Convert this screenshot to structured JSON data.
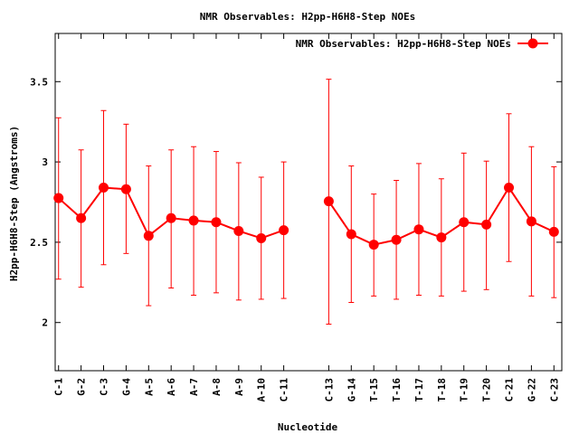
{
  "chart_data": {
    "type": "line",
    "title": "NMR Observables: H2pp-H6H8-Step NOEs",
    "xlabel": "Nucleotide",
    "ylabel": "H2pp-H6H8-Step (Angstroms)",
    "ylim": [
      1.7,
      3.8
    ],
    "yticks": [
      "2",
      "2.5",
      "3",
      "3.5"
    ],
    "grid": false,
    "legend_position": "top-right",
    "categories": [
      "C-1",
      "G-2",
      "C-3",
      "G-4",
      "A-5",
      "A-6",
      "A-7",
      "A-8",
      "A-9",
      "A-10",
      "C-11",
      "C-13",
      "G-14",
      "T-15",
      "T-16",
      "T-17",
      "T-18",
      "T-19",
      "T-20",
      "C-21",
      "G-22",
      "C-23"
    ],
    "x_positions": [
      1,
      2,
      3,
      4,
      5,
      6,
      7,
      8,
      9,
      10,
      11,
      13,
      14,
      15,
      16,
      17,
      18,
      19,
      20,
      21,
      22,
      23
    ],
    "series": [
      {
        "name": "NMR Observables: H2pp-H6H8-Step NOEs",
        "color": "#ff0000",
        "segments": [
          [
            0,
            10
          ],
          [
            11,
            21
          ]
        ],
        "values": [
          2.775,
          2.65,
          2.84,
          2.83,
          2.54,
          2.65,
          2.635,
          2.625,
          2.57,
          2.525,
          2.575,
          2.755,
          2.55,
          2.485,
          2.515,
          2.58,
          2.53,
          2.625,
          2.61,
          2.84,
          2.63,
          2.565
        ],
        "err_low": [
          2.27,
          2.22,
          2.36,
          2.43,
          2.105,
          2.215,
          2.17,
          2.185,
          2.14,
          2.145,
          2.15,
          1.99,
          2.125,
          2.165,
          2.145,
          2.17,
          2.165,
          2.195,
          2.205,
          2.38,
          2.165,
          2.155
        ],
        "err_high": [
          3.275,
          3.075,
          3.32,
          3.235,
          2.975,
          3.075,
          3.095,
          3.065,
          2.995,
          2.905,
          3.0,
          3.515,
          2.975,
          2.8,
          2.885,
          2.99,
          2.895,
          3.055,
          3.005,
          3.3,
          3.095,
          2.97
        ]
      }
    ]
  }
}
